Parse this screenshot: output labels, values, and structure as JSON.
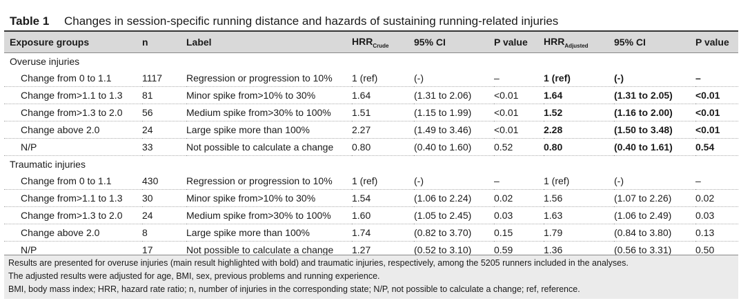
{
  "table": {
    "number": "Table 1",
    "title": "Changes in session-specific running distance and hazards of sustaining running-related injuries",
    "headers": {
      "exposure": "Exposure groups",
      "n": "n",
      "label": "Label",
      "hrr_crude_main": "HRR",
      "hrr_crude_sub": "Crude",
      "ci1": "95% CI",
      "p1": "P value",
      "hrr_adj_main": "HRR",
      "hrr_adj_sub": "Adjusted",
      "ci2": "95% CI",
      "p2": "P value"
    },
    "sections": [
      {
        "name": "Overuse injuries",
        "rows": [
          {
            "group": "Change from 0 to 1.1",
            "n": "1117",
            "label": "Regression or progression to 10%",
            "hrr_crude": "1 (ref)",
            "ci_crude": "(-)",
            "p_crude": "–",
            "hrr_adj": "1 (ref)",
            "ci_adj": "(-)",
            "p_adj": "–"
          },
          {
            "group": "Change from>1.1 to 1.3",
            "n": "81",
            "label": "Minor spike from>10% to 30%",
            "hrr_crude": "1.64",
            "ci_crude": "(1.31 to 2.06)",
            "p_crude": "<0.01",
            "hrr_adj": "1.64",
            "ci_adj": "(1.31 to 2.05)",
            "p_adj": "<0.01"
          },
          {
            "group": "Change from>1.3 to 2.0",
            "n": "56",
            "label": "Medium spike from>30% to 100%",
            "hrr_crude": "1.51",
            "ci_crude": "(1.15 to 1.99)",
            "p_crude": "<0.01",
            "hrr_adj": "1.52",
            "ci_adj": "(1.16 to 2.00)",
            "p_adj": "<0.01"
          },
          {
            "group": "Change above 2.0",
            "n": "24",
            "label": "Large spike more than 100%",
            "hrr_crude": "2.27",
            "ci_crude": "(1.49 to 3.46)",
            "p_crude": "<0.01",
            "hrr_adj": "2.28",
            "ci_adj": "(1.50 to 3.48)",
            "p_adj": "<0.01"
          },
          {
            "group": "N/P",
            "n": "33",
            "label": "Not possible to calculate a change",
            "hrr_crude": "0.80",
            "ci_crude": "(0.40 to 1.60)",
            "p_crude": "0.52",
            "hrr_adj": "0.80",
            "ci_adj": "(0.40 to 1.61)",
            "p_adj": "0.54"
          }
        ]
      },
      {
        "name": "Traumatic injuries",
        "rows": [
          {
            "group": "Change from 0 to 1.1",
            "n": "430",
            "label": "Regression or progression to 10%",
            "hrr_crude": "1 (ref)",
            "ci_crude": "(-)",
            "p_crude": "–",
            "hrr_adj": "1 (ref)",
            "ci_adj": "(-)",
            "p_adj": "–"
          },
          {
            "group": "Change from>1.1 to 1.3",
            "n": "30",
            "label": "Minor spike from>10% to 30%",
            "hrr_crude": "1.54",
            "ci_crude": "(1.06 to 2.24)",
            "p_crude": "0.02",
            "hrr_adj": "1.56",
            "ci_adj": "(1.07 to 2.26)",
            "p_adj": "0.02"
          },
          {
            "group": "Change from>1.3 to 2.0",
            "n": "24",
            "label": "Medium spike from>30% to 100%",
            "hrr_crude": "1.60",
            "ci_crude": "(1.05 to 2.45)",
            "p_crude": "0.03",
            "hrr_adj": "1.63",
            "ci_adj": "(1.06 to 2.49)",
            "p_adj": "0.03"
          },
          {
            "group": "Change above 2.0",
            "n": "8",
            "label": "Large spike more than 100%",
            "hrr_crude": "1.74",
            "ci_crude": "(0.82 to 3.70)",
            "p_crude": "0.15",
            "hrr_adj": "1.79",
            "ci_adj": "(0.84 to 3.80)",
            "p_adj": "0.13"
          },
          {
            "group": "N/P",
            "n": "17",
            "label": "Not possible to calculate a change",
            "hrr_crude": "1.27",
            "ci_crude": "(0.52 to 3.10)",
            "p_crude": "0.59",
            "hrr_adj": "1.36",
            "ci_adj": "(0.56 to 3.31)",
            "p_adj": "0.50"
          }
        ]
      }
    ],
    "footnotes": [
      "Results are presented for overuse injuries (main result highlighted with bold) and traumatic injuries, respectively, among the 5205 runners included in the analyses.",
      "The adjusted results were adjusted for age, BMI, sex, previous problems and running experience.",
      "BMI, body mass index; HRR, hazard rate ratio; n, number of injuries in the corresponding state; N/P, not possible to calculate a change; ref, reference."
    ]
  }
}
